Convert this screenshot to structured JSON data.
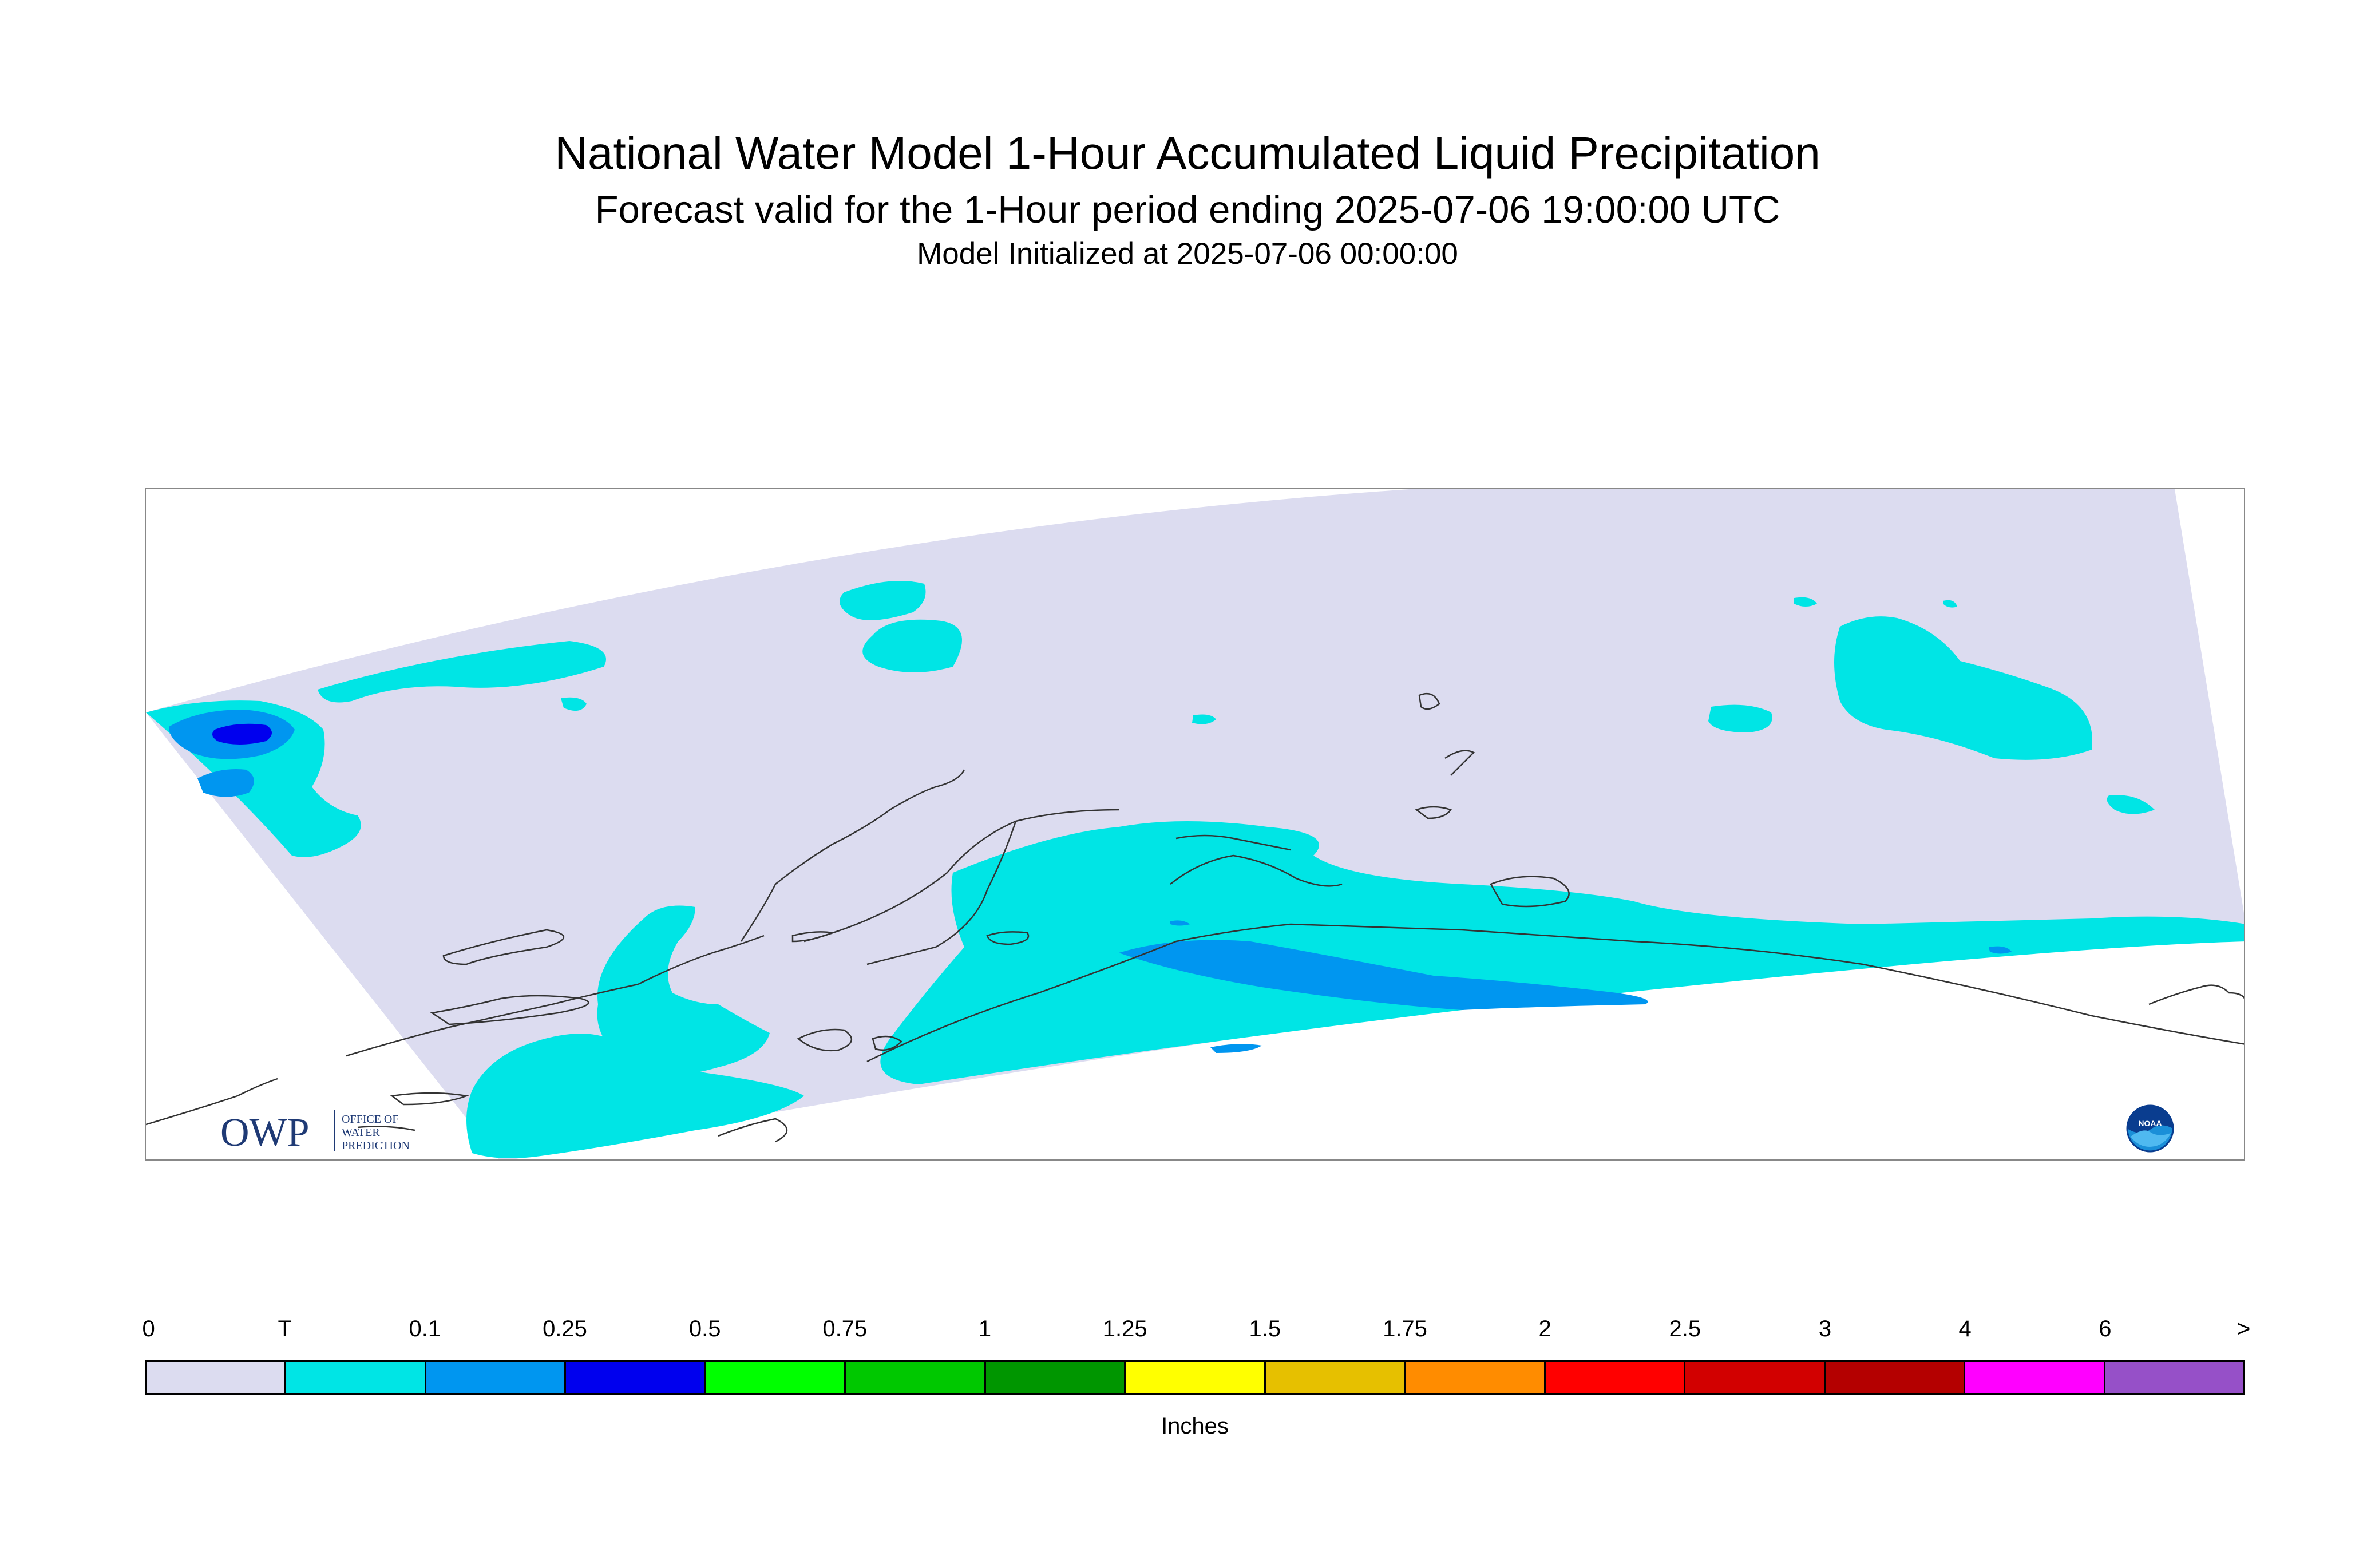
{
  "header": {
    "title": "National Water Model 1-Hour Accumulated Liquid Precipitation",
    "subtitle": "Forecast valid for the 1-Hour period ending 2025-07-06 19:00:00 UTC",
    "init": "Model Initialized at 2025-07-06 00:00:00"
  },
  "logos": {
    "owp_letters": "OWP",
    "owp_text_lines": [
      "OFFICE OF",
      "WATER",
      "PREDICTION"
    ],
    "noaa_text": "NOAA"
  },
  "colors": {
    "domain_zero": "#dcdcf0",
    "trace": "#00e5e5",
    "p01": "#0096f0",
    "p025": "#0000ee",
    "coastline": "#333333"
  },
  "legend": {
    "labels": [
      "0",
      "T",
      "0.1",
      "0.25",
      "0.5",
      "0.75",
      "1",
      "1.25",
      "1.5",
      "1.75",
      "2",
      "2.5",
      "3",
      "4",
      "6",
      ">"
    ],
    "colors": [
      "#dcdcf0",
      "#00e5e5",
      "#0096f0",
      "#0000ee",
      "#00ff00",
      "#00c800",
      "#009600",
      "#ffff00",
      "#e6c000",
      "#ff8c00",
      "#ff0000",
      "#d20000",
      "#b40000",
      "#ff00ff",
      "#9650c8"
    ],
    "units": "Inches"
  }
}
